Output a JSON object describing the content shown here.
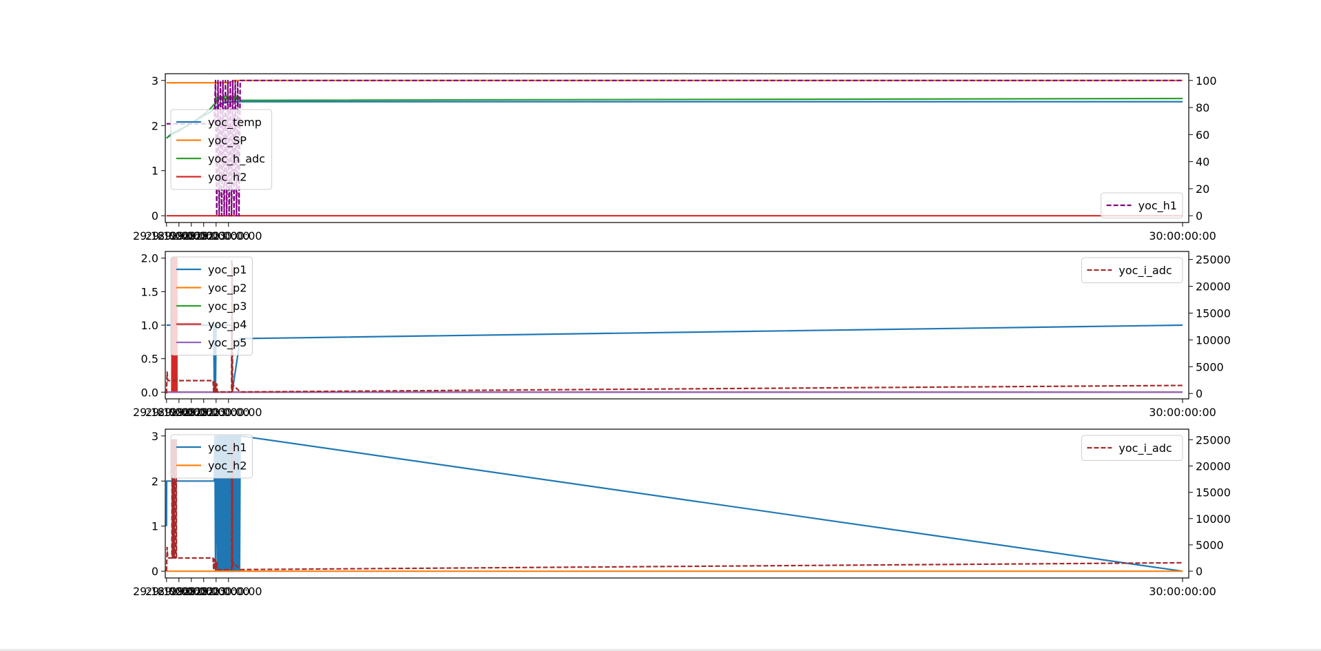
{
  "chart_data": [
    {
      "type": "line",
      "xlim": [
        29.179,
        30.005
      ],
      "x_ticks": [
        29.18,
        29.19,
        29.2,
        29.21,
        29.22,
        29.23,
        30.0
      ],
      "x_tick_labels": [
        "29:18:00:00",
        "29:19:00:00",
        "29:20:00:00",
        "29:21:00:00",
        "29:22:00:00",
        "29:23:00:00",
        "30:00:00:00"
      ],
      "y_left": {
        "lim": [
          -0.15,
          3.15
        ],
        "ticks": [
          0,
          1,
          2,
          3
        ],
        "labels": [
          "0",
          "1",
          "2",
          "3"
        ]
      },
      "y_right": {
        "lim": [
          -5.0,
          105.0
        ],
        "ticks": [
          0,
          20,
          40,
          60,
          80,
          100
        ],
        "labels": [
          "0",
          "20",
          "40",
          "60",
          "80",
          "100"
        ]
      },
      "legend_left": {
        "placement": "center-left",
        "entries": [
          "yoc_temp",
          "yoc_SP",
          "yoc_h_adc",
          "yoc_h2"
        ]
      },
      "legend_right": {
        "placement": "lower-right",
        "entries": [
          "yoc_h1"
        ]
      },
      "series": [
        {
          "name": "yoc_temp",
          "axis": "left",
          "color": "#1f77b4",
          "style": "solid",
          "x": [
            29.18,
            29.184,
            29.19,
            29.2,
            29.21,
            29.2155,
            29.22,
            29.225,
            29.23,
            29.235,
            30.0
          ],
          "y": [
            1.72,
            1.82,
            1.9,
            2.05,
            2.22,
            2.3,
            2.42,
            2.5,
            2.52,
            2.53,
            2.53
          ]
        },
        {
          "name": "yoc_SP",
          "axis": "left",
          "color": "#ff7f0e",
          "style": "solid",
          "x": [
            29.18,
            29.23,
            29.235,
            30.0
          ],
          "y": [
            2.95,
            2.95,
            3.0,
            3.0
          ]
        },
        {
          "name": "yoc_h_adc",
          "axis": "left",
          "color": "#2ca02c",
          "style": "solid",
          "x": [
            29.18,
            29.184,
            29.19,
            29.2,
            29.21,
            29.2155,
            29.22,
            29.2205,
            29.2215,
            29.2225,
            29.2235,
            29.2245,
            29.2255,
            29.2265,
            29.2275,
            29.2285,
            29.2295,
            29.2305,
            29.2315,
            29.2325,
            29.2335,
            29.2345,
            29.2355,
            29.2365,
            29.2375,
            29.2385,
            29.2395,
            30.0
          ],
          "y": [
            1.72,
            1.8,
            1.88,
            2.05,
            2.25,
            2.38,
            2.52,
            2.62,
            2.55,
            2.64,
            2.55,
            2.64,
            2.55,
            2.64,
            2.55,
            2.64,
            2.55,
            2.64,
            2.55,
            2.64,
            2.55,
            2.64,
            2.55,
            2.64,
            2.55,
            2.64,
            2.56,
            2.6
          ]
        },
        {
          "name": "yoc_h2",
          "axis": "left",
          "color": "#d62728",
          "style": "solid",
          "x": [
            29.18,
            30.0
          ],
          "y": [
            0,
            0
          ]
        },
        {
          "name": "yoc_h1",
          "axis": "right",
          "color": "#800080",
          "style": "dashed",
          "x": [
            29.18,
            29.2185,
            29.2195,
            29.2205,
            29.2215,
            29.2225,
            29.2235,
            29.2245,
            29.2255,
            29.2265,
            29.2275,
            29.2285,
            29.2295,
            29.2305,
            29.2315,
            29.2325,
            29.2335,
            29.2345,
            29.2355,
            29.2365,
            29.2375,
            29.2385,
            29.2395,
            30.0
          ],
          "y": [
            68,
            68,
            100,
            0,
            100,
            0,
            100,
            0,
            100,
            0,
            100,
            0,
            100,
            0,
            100,
            0,
            100,
            0,
            100,
            0,
            100,
            0,
            100,
            100
          ]
        }
      ]
    },
    {
      "type": "line",
      "xlim": [
        29.179,
        30.005
      ],
      "x_ticks": [
        29.18,
        29.19,
        29.2,
        29.21,
        29.22,
        29.23,
        30.0
      ],
      "x_tick_labels": [
        "29:18:00:00",
        "29:19:00:00",
        "29:20:00:00",
        "29:21:00:00",
        "29:22:00:00",
        "29:23:00:00",
        "30:00:00:00"
      ],
      "y_left": {
        "lim": [
          -0.1,
          2.1
        ],
        "ticks": [
          0.0,
          0.5,
          1.0,
          1.5,
          2.0
        ],
        "labels": [
          "0.0",
          "0.5",
          "1.0",
          "1.5",
          "2.0"
        ]
      },
      "y_right": {
        "lim": [
          -1000,
          26500
        ],
        "ticks": [
          0,
          5000,
          10000,
          15000,
          20000,
          25000
        ],
        "labels": [
          "0",
          "5000",
          "10000",
          "15000",
          "20000",
          "25000"
        ]
      },
      "legend_left": {
        "placement": "upper-left",
        "entries": [
          "yoc_p1",
          "yoc_p2",
          "yoc_p3",
          "yoc_p4",
          "yoc_p5"
        ]
      },
      "legend_right": {
        "placement": "upper-right",
        "entries": [
          "yoc_i_adc"
        ]
      },
      "series": [
        {
          "name": "yoc_p1",
          "axis": "left",
          "color": "#1f77b4",
          "style": "solid",
          "x": [
            29.18,
            29.184,
            29.1845,
            29.186,
            29.1865,
            29.1875,
            29.188,
            29.2175,
            29.218,
            29.2185,
            29.219,
            29.2195,
            29.22,
            29.2325,
            29.233,
            29.2395,
            30.0
          ],
          "y": [
            1,
            1,
            2,
            1,
            1,
            2,
            1,
            1,
            1,
            0,
            1,
            0,
            1,
            1,
            0,
            0.8,
            1
          ]
        },
        {
          "name": "yoc_p2",
          "axis": "left",
          "color": "#ff7f0e",
          "style": "solid",
          "x": [
            29.18,
            29.1863,
            29.1865,
            29.1868,
            29.187,
            30.0
          ],
          "y": [
            0,
            0,
            2,
            2,
            0,
            0
          ]
        },
        {
          "name": "yoc_p3",
          "axis": "left",
          "color": "#2ca02c",
          "style": "solid",
          "x": [
            29.18,
            29.1843,
            29.1845,
            29.1848,
            29.185,
            29.1878,
            29.188,
            29.1883,
            29.1885,
            30.0
          ],
          "y": [
            0,
            0,
            2,
            2,
            0,
            0,
            2,
            2,
            0,
            0
          ]
        },
        {
          "name": "yoc_p4",
          "axis": "left",
          "color": "#d62728",
          "style": "solid",
          "x": [
            29.18,
            29.1843,
            29.1845,
            29.1848,
            29.185,
            29.1853,
            29.1855,
            29.1858,
            29.186,
            29.1863,
            29.1865,
            29.1868,
            29.1876,
            29.1878,
            29.188,
            29.1883,
            30.0
          ],
          "y": [
            0,
            0,
            2,
            0,
            2,
            0,
            2,
            0,
            2,
            0,
            2,
            0,
            0,
            2,
            0,
            0,
            0
          ]
        },
        {
          "name": "yoc_p5",
          "axis": "left",
          "color": "#9467bd",
          "style": "solid",
          "x": [
            29.18,
            30.0
          ],
          "y": [
            0,
            0
          ]
        },
        {
          "name": "yoc_i_adc",
          "axis": "right",
          "color": "#a52a2a",
          "style": "dashed",
          "x": [
            29.18,
            29.1805,
            29.181,
            29.2175,
            29.218,
            29.2185,
            29.219,
            29.2195,
            29.22,
            29.2205,
            29.221,
            29.2325,
            29.2327,
            29.2329,
            29.2331,
            29.2333,
            29.234,
            29.2395,
            30.0
          ],
          "y": [
            0,
            4000,
            2400,
            2400,
            300,
            2200,
            300,
            2000,
            300,
            1800,
            300,
            300,
            25000,
            400,
            24000,
            400,
            1500,
            300,
            1500
          ]
        }
      ]
    },
    {
      "type": "line",
      "xlim": [
        29.179,
        30.005
      ],
      "x_ticks": [
        29.18,
        29.19,
        29.2,
        29.21,
        29.22,
        29.23,
        30.0
      ],
      "x_tick_labels": [
        "29:18:00:00",
        "29:19:00:00",
        "29:20:00:00",
        "29:21:00:00",
        "29:22:00:00",
        "29:23:00:00",
        "30:00:00:00"
      ],
      "y_left": {
        "lim": [
          -0.15,
          3.15
        ],
        "ticks": [
          0,
          1,
          2,
          3
        ],
        "labels": [
          "0",
          "1",
          "2",
          "3"
        ]
      },
      "y_right": {
        "lim": [
          -1300,
          27000
        ],
        "ticks": [
          0,
          5000,
          10000,
          15000,
          20000,
          25000
        ],
        "labels": [
          "0",
          "5000",
          "10000",
          "15000",
          "20000",
          "25000"
        ]
      },
      "legend_left": {
        "placement": "upper-left",
        "entries": [
          "yoc_h1",
          "yoc_h2"
        ]
      },
      "legend_right": {
        "placement": "upper-right",
        "entries": [
          "yoc_i_adc"
        ]
      },
      "series": [
        {
          "name": "yoc_h1",
          "axis": "left",
          "color": "#1f77b4",
          "style": "solid",
          "x": [
            29.18,
            29.1801,
            29.2185,
            29.219,
            29.2195,
            29.22,
            29.2205,
            29.221,
            29.2215,
            29.222,
            29.2225,
            29.223,
            29.2235,
            29.224,
            29.2245,
            29.225,
            29.2255,
            29.226,
            29.2265,
            29.227,
            29.2275,
            29.228,
            29.2285,
            29.229,
            29.2295,
            29.23,
            29.2305,
            29.231,
            29.2315,
            29.232,
            29.2325,
            29.233,
            29.2335,
            29.234,
            29.2345,
            29.235,
            29.2355,
            29.236,
            29.2365,
            29.237,
            29.2375,
            29.238,
            29.2385,
            29.239,
            29.2395,
            30.0
          ],
          "y": [
            1,
            2,
            2,
            3,
            0,
            2,
            3,
            0,
            3,
            0,
            3,
            0,
            3,
            0,
            3,
            0,
            3,
            0,
            3,
            0,
            3,
            0,
            3,
            0,
            3,
            0,
            3,
            0,
            3,
            0,
            3,
            0,
            3,
            0,
            3,
            0,
            3,
            0,
            3,
            0,
            3,
            0,
            3,
            0,
            3,
            0
          ]
        },
        {
          "name": "yoc_h2",
          "axis": "left",
          "color": "#ff7f0e",
          "style": "solid",
          "x": [
            29.18,
            30.0
          ],
          "y": [
            0,
            0
          ]
        },
        {
          "name": "yoc_i_adc",
          "axis": "right",
          "color": "#a52a2a",
          "style": "dashed",
          "x": [
            29.18,
            29.1805,
            29.181,
            29.1843,
            29.1845,
            29.1848,
            29.185,
            29.1853,
            29.1855,
            29.1858,
            29.186,
            29.1863,
            29.1865,
            29.1868,
            29.1876,
            29.1878,
            29.188,
            29.2175,
            29.218,
            29.2185,
            29.219,
            29.2195,
            29.22,
            29.2205,
            29.221,
            29.2325,
            29.2327,
            29.2329,
            29.2331,
            29.2333,
            29.234,
            29.2395,
            30.0
          ],
          "y": [
            0,
            4500,
            2500,
            2500,
            25000,
            2500,
            25000,
            2500,
            25000,
            2500,
            25000,
            2500,
            25000,
            2500,
            2500,
            25000,
            2500,
            2500,
            300,
            2300,
            300,
            2100,
            300,
            1900,
            300,
            300,
            25000,
            400,
            24000,
            400,
            1600,
            300,
            1600
          ]
        }
      ]
    }
  ]
}
